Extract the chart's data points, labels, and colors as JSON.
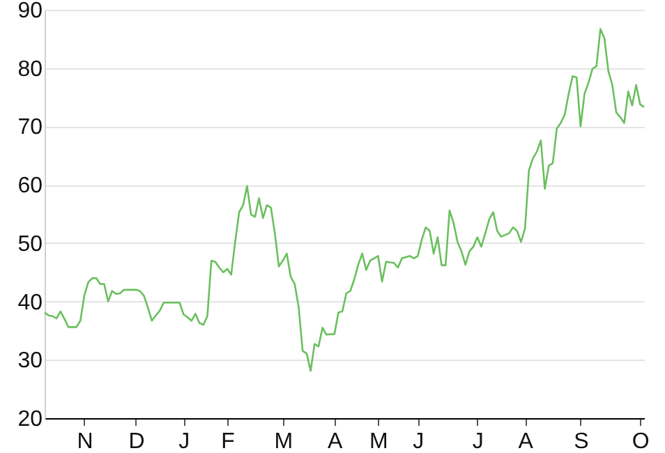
{
  "chart_data": {
    "type": "line",
    "grid": "y",
    "ylim": [
      20,
      90
    ],
    "yticks": [
      20,
      30,
      40,
      50,
      60,
      70,
      80,
      90
    ],
    "categories": [
      null,
      null,
      null,
      null,
      null,
      null,
      null,
      null,
      null,
      null,
      "N",
      null,
      null,
      null,
      null,
      null,
      null,
      null,
      null,
      null,
      null,
      null,
      null,
      "D",
      null,
      null,
      null,
      null,
      null,
      null,
      null,
      null,
      null,
      null,
      null,
      "J",
      null,
      null,
      null,
      null,
      null,
      null,
      null,
      null,
      null,
      null,
      "F",
      null,
      null,
      null,
      null,
      null,
      null,
      null,
      null,
      null,
      null,
      null,
      null,
      null,
      "M",
      null,
      null,
      null,
      null,
      null,
      null,
      null,
      null,
      null,
      null,
      null,
      null,
      "A",
      null,
      null,
      null,
      null,
      null,
      null,
      null,
      null,
      null,
      null,
      "M",
      null,
      null,
      null,
      null,
      null,
      null,
      null,
      null,
      null,
      "J",
      null,
      null,
      null,
      null,
      null,
      null,
      null,
      null,
      null,
      null,
      null,
      null,
      null,
      null,
      "J",
      null,
      null,
      null,
      null,
      null,
      null,
      null,
      null,
      null,
      null,
      null,
      "A",
      null,
      null,
      null,
      null,
      null,
      null,
      null,
      null,
      null,
      null,
      null,
      null,
      null,
      "S",
      null,
      null,
      null,
      null,
      null,
      null,
      null,
      null,
      null,
      null,
      null,
      null,
      null,
      null,
      "O",
      null
    ],
    "series": [
      {
        "color": "#6abf5e",
        "values": [
          38.1,
          37.6,
          37.5,
          37.1,
          38.3,
          37.0,
          35.6,
          35.6,
          35.6,
          36.7,
          41.0,
          43.3,
          44.0,
          44.0,
          43.0,
          43.0,
          40.0,
          41.8,
          41.3,
          41.4,
          42.0,
          42.0,
          42.0,
          42.0,
          41.8,
          41.0,
          39.0,
          36.7,
          37.6,
          38.4,
          39.8,
          39.8,
          39.8,
          39.8,
          39.8,
          37.8,
          37.3,
          36.7,
          37.9,
          36.3,
          36.0,
          37.5,
          47.0,
          46.8,
          45.8,
          45.0,
          45.6,
          44.6,
          50.2,
          55.3,
          56.5,
          59.8,
          54.9,
          54.5,
          57.7,
          54.3,
          56.5,
          56.1,
          51.7,
          46.0,
          47.0,
          48.2,
          44.2,
          43.0,
          39.0,
          31.5,
          31.1,
          28.1,
          32.7,
          32.3,
          35.5,
          34.3,
          34.4,
          34.4,
          38.1,
          38.3,
          41.4,
          41.8,
          43.8,
          46.3,
          48.2,
          45.4,
          47.0,
          47.4,
          47.8,
          43.4,
          46.8,
          46.7,
          46.6,
          45.8,
          47.4,
          47.6,
          47.8,
          47.4,
          47.8,
          50.6,
          52.7,
          52.1,
          48.2,
          51.0,
          46.2,
          46.2,
          55.6,
          53.5,
          50.2,
          48.6,
          46.3,
          48.6,
          49.4,
          51.0,
          49.4,
          51.7,
          54.1,
          55.3,
          52.1,
          51.1,
          51.4,
          51.7,
          52.7,
          52.1,
          50.2,
          52.5,
          62.5,
          64.5,
          65.7,
          67.6,
          59.3,
          63.3,
          63.7,
          69.6,
          70.6,
          72.0,
          75.6,
          78.6,
          78.4,
          70.0,
          75.6,
          77.5,
          79.9,
          80.3,
          86.7,
          85.1,
          79.5,
          77.1,
          72.4,
          71.6,
          70.6,
          76.0,
          73.6,
          77.1,
          73.8,
          73.3
        ]
      }
    ]
  }
}
